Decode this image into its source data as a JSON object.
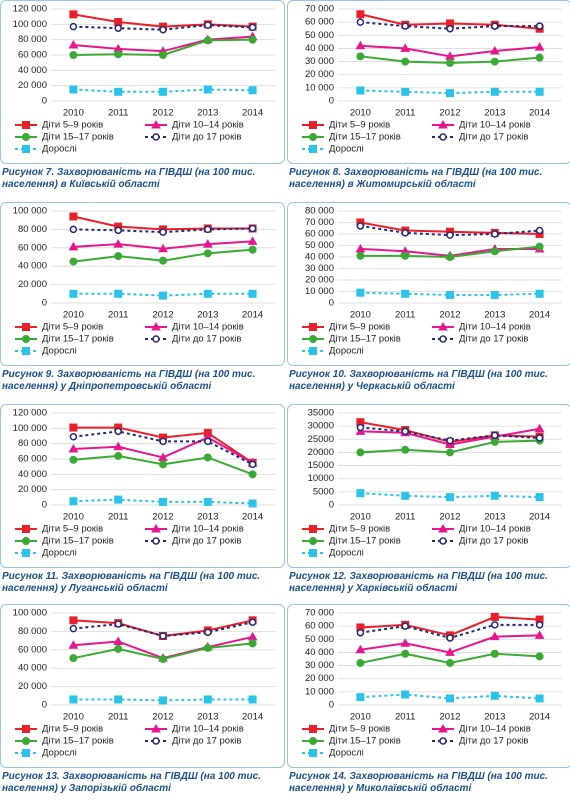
{
  "chart_data": [
    {
      "type": "line",
      "label": "Рисунок 7.",
      "title": "Захворюваність на ГІВДШ (на 100 тис. населення) в Київській області",
      "categories": [
        "2010",
        "2011",
        "2012",
        "2013",
        "2014"
      ],
      "ylim": [
        0,
        120000
      ],
      "yticks": [
        0,
        {
          "value": 20000,
          "label": "20 000"
        },
        {
          "value": 40000,
          "label": "40 000"
        },
        {
          "value": 60000,
          "label": "60 000"
        },
        {
          "value": 80000,
          "label": "80 000"
        },
        {
          "value": 100000,
          "label": "100 000"
        },
        {
          "value": 120000,
          "label": "120 000"
        }
      ],
      "grid": true,
      "series": [
        {
          "name": "Діти 5–9 років",
          "color": "#e8202a",
          "marker": "square",
          "dash": false,
          "values": [
            113000,
            103000,
            97000,
            100000,
            97000
          ]
        },
        {
          "name": "Діти 10–14 років",
          "color": "#e6168c",
          "marker": "triangle",
          "dash": false,
          "values": [
            73000,
            68000,
            65000,
            80000,
            84000
          ]
        },
        {
          "name": "Діти 15–17 років",
          "color": "#3aaa35",
          "marker": "circle",
          "dash": false,
          "values": [
            60000,
            61000,
            60000,
            79000,
            80000
          ]
        },
        {
          "name": "Діти до 17 років",
          "color": "#1f2a78",
          "marker": "open-circle",
          "dash": true,
          "values": [
            97000,
            95000,
            93000,
            99000,
            96000
          ]
        },
        {
          "name": "Дорослі",
          "color": "#2bc4e8",
          "marker": "square",
          "dash": true,
          "values": [
            15000,
            12000,
            12000,
            15000,
            14000
          ]
        }
      ]
    },
    {
      "type": "line",
      "label": "Рисунок 8.",
      "title": "Захворюваність на ГІВДШ (на 100 тис. населення) в Житомирській області",
      "categories": [
        "2010",
        "2011",
        "2012",
        "2013",
        "2014"
      ],
      "ylim": [
        0,
        70000
      ],
      "yticks": [
        0,
        {
          "value": 10000,
          "label": "10 000"
        },
        {
          "value": 20000,
          "label": "20 000"
        },
        {
          "value": 30000,
          "label": "30 000"
        },
        {
          "value": 40000,
          "label": "40 000"
        },
        {
          "value": 50000,
          "label": "50 000"
        },
        {
          "value": 60000,
          "label": "60 000"
        },
        {
          "value": 70000,
          "label": "70 000"
        }
      ],
      "grid": true,
      "series": [
        {
          "name": "Діти 5–9 років",
          "color": "#e8202a",
          "marker": "square",
          "dash": false,
          "values": [
            66000,
            58000,
            59000,
            58000,
            55000
          ]
        },
        {
          "name": "Діти 10–14 років",
          "color": "#e6168c",
          "marker": "triangle",
          "dash": false,
          "values": [
            42000,
            40000,
            34000,
            38000,
            41000
          ]
        },
        {
          "name": "Діти 15–17 років",
          "color": "#3aaa35",
          "marker": "circle",
          "dash": false,
          "values": [
            34000,
            30000,
            29000,
            30000,
            33000
          ]
        },
        {
          "name": "Діти до 17 років",
          "color": "#1f2a78",
          "marker": "open-circle",
          "dash": true,
          "values": [
            60000,
            57000,
            55000,
            57000,
            57000
          ]
        },
        {
          "name": "Дорослі",
          "color": "#2bc4e8",
          "marker": "square",
          "dash": true,
          "values": [
            8000,
            7000,
            6000,
            7000,
            7000
          ]
        }
      ]
    },
    {
      "type": "line",
      "label": "Рисунок 9.",
      "title": "Захворюваність на ГІВДШ (на 100 тис. населення) у Дніпропетровській області",
      "categories": [
        "2010",
        "2011",
        "2012",
        "2013",
        "2014"
      ],
      "ylim": [
        0,
        100000
      ],
      "yticks": [
        0,
        {
          "value": 20000,
          "label": "20 000"
        },
        {
          "value": 40000,
          "label": "40 000"
        },
        {
          "value": 60000,
          "label": "60 000"
        },
        {
          "value": 80000,
          "label": "80 000"
        },
        {
          "value": 100000,
          "label": "100 000"
        }
      ],
      "grid": true,
      "series": [
        {
          "name": "Діти 5–9 років",
          "color": "#e8202a",
          "marker": "square",
          "dash": false,
          "values": [
            94000,
            83000,
            80000,
            81000,
            81000
          ]
        },
        {
          "name": "Діти 10–14 років",
          "color": "#e6168c",
          "marker": "triangle",
          "dash": false,
          "values": [
            61000,
            64000,
            59000,
            64000,
            67000
          ]
        },
        {
          "name": "Діти 15–17 років",
          "color": "#3aaa35",
          "marker": "circle",
          "dash": false,
          "values": [
            45000,
            51000,
            46000,
            54000,
            58000
          ]
        },
        {
          "name": "Діти до 17 років",
          "color": "#1f2a78",
          "marker": "open-circle",
          "dash": true,
          "values": [
            80000,
            79000,
            77000,
            80000,
            81000
          ]
        },
        {
          "name": "Дорослі",
          "color": "#2bc4e8",
          "marker": "square",
          "dash": true,
          "values": [
            10000,
            10000,
            8000,
            10000,
            10000
          ]
        }
      ]
    },
    {
      "type": "line",
      "label": "Рисунок 10.",
      "title": "Захворюваність на ГІВДШ (на 100 тис. населення) у Черкаській області",
      "categories": [
        "2010",
        "2011",
        "2012",
        "2013",
        "2014"
      ],
      "ylim": [
        0,
        80000
      ],
      "yticks": [
        0,
        {
          "value": 10000,
          "label": "10 000"
        },
        {
          "value": 20000,
          "label": "20 000"
        },
        {
          "value": 30000,
          "label": "30 000"
        },
        {
          "value": 40000,
          "label": "40 000"
        },
        {
          "value": 50000,
          "label": "50 000"
        },
        {
          "value": 60000,
          "label": "60 000"
        },
        {
          "value": 70000,
          "label": "70 000"
        },
        {
          "value": 80000,
          "label": "80 000"
        }
      ],
      "grid": true,
      "series": [
        {
          "name": "Діти 5–9 років",
          "color": "#e8202a",
          "marker": "square",
          "dash": false,
          "values": [
            70000,
            63000,
            62000,
            61000,
            60000
          ]
        },
        {
          "name": "Діти 10–14 років",
          "color": "#e6168c",
          "marker": "triangle",
          "dash": false,
          "values": [
            47000,
            45000,
            41000,
            47000,
            47000
          ]
        },
        {
          "name": "Діти 15–17 років",
          "color": "#3aaa35",
          "marker": "circle",
          "dash": false,
          "values": [
            41000,
            41000,
            40000,
            45000,
            49000
          ]
        },
        {
          "name": "Діти до 17 років",
          "color": "#1f2a78",
          "marker": "open-circle",
          "dash": true,
          "values": [
            67000,
            61000,
            59000,
            60000,
            63000
          ]
        },
        {
          "name": "Дорослі",
          "color": "#2bc4e8",
          "marker": "square",
          "dash": true,
          "values": [
            9000,
            8000,
            7000,
            7000,
            8000
          ]
        }
      ]
    },
    {
      "type": "line",
      "label": "Рисунок 11.",
      "title": "Захворюваність на ГІВДШ (на 100 тис. населення) у Луганській області",
      "categories": [
        "2010",
        "2011",
        "2012",
        "2013",
        "2014"
      ],
      "ylim": [
        0,
        120000
      ],
      "yticks": [
        0,
        {
          "value": 20000,
          "label": "20 000"
        },
        {
          "value": 40000,
          "label": "40 000"
        },
        {
          "value": 60000,
          "label": "60 000"
        },
        {
          "value": 80000,
          "label": "80 000"
        },
        {
          "value": 100000,
          "label": "100 000"
        },
        {
          "value": 120000,
          "label": "120 000"
        }
      ],
      "grid": true,
      "series": [
        {
          "name": "Діти 5–9 років",
          "color": "#e8202a",
          "marker": "square",
          "dash": false,
          "values": [
            101000,
            101000,
            88000,
            94000,
            55000
          ]
        },
        {
          "name": "Діти 10–14 років",
          "color": "#e6168c",
          "marker": "triangle",
          "dash": false,
          "values": [
            73000,
            76000,
            62000,
            88000,
            55000
          ]
        },
        {
          "name": "Діти 15–17 років",
          "color": "#3aaa35",
          "marker": "circle",
          "dash": false,
          "values": [
            59000,
            64000,
            53000,
            62000,
            40000
          ]
        },
        {
          "name": "Діти до 17 років",
          "color": "#1f2a78",
          "marker": "open-circle",
          "dash": true,
          "values": [
            89000,
            96000,
            83000,
            83000,
            53000
          ]
        },
        {
          "name": "Дорослі",
          "color": "#2bc4e8",
          "marker": "square",
          "dash": true,
          "values": [
            5000,
            7000,
            4000,
            4000,
            2000
          ]
        }
      ]
    },
    {
      "type": "line",
      "label": "Рисунок 12.",
      "title": "Захворюваність на ГІВДШ (на 100 тис. населення) у Харківській області",
      "categories": [
        "2010",
        "2011",
        "2012",
        "2013",
        "2014"
      ],
      "ylim": [
        0,
        35000
      ],
      "yticks": [
        0,
        5000,
        10000,
        15000,
        20000,
        25000,
        30000,
        35000
      ],
      "grid": true,
      "series": [
        {
          "name": "Діти 5–9 років",
          "color": "#e8202a",
          "marker": "square",
          "dash": false,
          "values": [
            31500,
            28500,
            24000,
            26500,
            26000
          ]
        },
        {
          "name": "Діти 10–14 років",
          "color": "#e6168c",
          "marker": "triangle",
          "dash": false,
          "values": [
            28000,
            27500,
            23000,
            26000,
            29000
          ]
        },
        {
          "name": "Діти 15–17 років",
          "color": "#3aaa35",
          "marker": "circle",
          "dash": false,
          "values": [
            20000,
            21000,
            20000,
            24000,
            24500
          ]
        },
        {
          "name": "Діти до 17 років",
          "color": "#1f2a78",
          "marker": "open-circle",
          "dash": true,
          "values": [
            29500,
            28000,
            24500,
            26500,
            25500
          ]
        },
        {
          "name": "Дорослі",
          "color": "#2bc4e8",
          "marker": "square",
          "dash": true,
          "values": [
            4500,
            3500,
            3000,
            3500,
            3000
          ]
        }
      ]
    },
    {
      "type": "line",
      "label": "Рисунок 13.",
      "title": "Захворюваність на ГІВДШ (на 100 тис. населення) у Запорізькій області",
      "categories": [
        "2010",
        "2011",
        "2012",
        "2013",
        "2014"
      ],
      "ylim": [
        0,
        100000
      ],
      "yticks": [
        0,
        {
          "value": 20000,
          "label": "20 000"
        },
        {
          "value": 40000,
          "label": "40 000"
        },
        {
          "value": 60000,
          "label": "60 000"
        },
        {
          "value": 80000,
          "label": "80 000"
        },
        {
          "value": 100000,
          "label": "100 000"
        }
      ],
      "grid": true,
      "series": [
        {
          "name": "Діти 5–9 років",
          "color": "#e8202a",
          "marker": "square",
          "dash": false,
          "values": [
            92000,
            89000,
            75000,
            81000,
            92000
          ]
        },
        {
          "name": "Діти 10–14 років",
          "color": "#e6168c",
          "marker": "triangle",
          "dash": false,
          "values": [
            65000,
            69000,
            51000,
            63000,
            74000
          ]
        },
        {
          "name": "Діти 15–17 років",
          "color": "#3aaa35",
          "marker": "circle",
          "dash": false,
          "values": [
            51000,
            61000,
            50000,
            62000,
            67000
          ]
        },
        {
          "name": "Діти до 17 років",
          "color": "#1f2a78",
          "marker": "open-circle",
          "dash": true,
          "values": [
            83000,
            88000,
            75000,
            79000,
            90000
          ]
        },
        {
          "name": "Дорослі",
          "color": "#2bc4e8",
          "marker": "square",
          "dash": true,
          "values": [
            6000,
            6000,
            5000,
            6000,
            6000
          ]
        }
      ]
    },
    {
      "type": "line",
      "label": "Рисунок 14.",
      "title": "Захворюваність на ГІВДШ (на 100 тис. населення) у Миколаївській області",
      "categories": [
        "2010",
        "2011",
        "2012",
        "2013",
        "2014"
      ],
      "ylim": [
        0,
        70000
      ],
      "yticks": [
        0,
        {
          "value": 10000,
          "label": "10 000"
        },
        {
          "value": 20000,
          "label": "20 000"
        },
        {
          "value": 30000,
          "label": "30 000"
        },
        {
          "value": 40000,
          "label": "40 000"
        },
        {
          "value": 50000,
          "label": "50 000"
        },
        {
          "value": 60000,
          "label": "60 000"
        },
        {
          "value": 70000,
          "label": "70 000"
        }
      ],
      "grid": true,
      "series": [
        {
          "name": "Діти 5–9 років",
          "color": "#e8202a",
          "marker": "square",
          "dash": false,
          "values": [
            59000,
            61000,
            53000,
            67000,
            65000
          ]
        },
        {
          "name": "Діти 10–14 років",
          "color": "#e6168c",
          "marker": "triangle",
          "dash": false,
          "values": [
            42000,
            47000,
            40000,
            52000,
            53000
          ]
        },
        {
          "name": "Діти 15–17 років",
          "color": "#3aaa35",
          "marker": "circle",
          "dash": false,
          "values": [
            32000,
            39000,
            32000,
            39000,
            37000
          ]
        },
        {
          "name": "Діти до 17 років",
          "color": "#1f2a78",
          "marker": "open-circle",
          "dash": true,
          "values": [
            55000,
            60000,
            51000,
            61000,
            61000
          ]
        },
        {
          "name": "Дорослі",
          "color": "#2bc4e8",
          "marker": "square",
          "dash": true,
          "values": [
            6000,
            8000,
            5000,
            7000,
            5000
          ]
        }
      ]
    }
  ]
}
